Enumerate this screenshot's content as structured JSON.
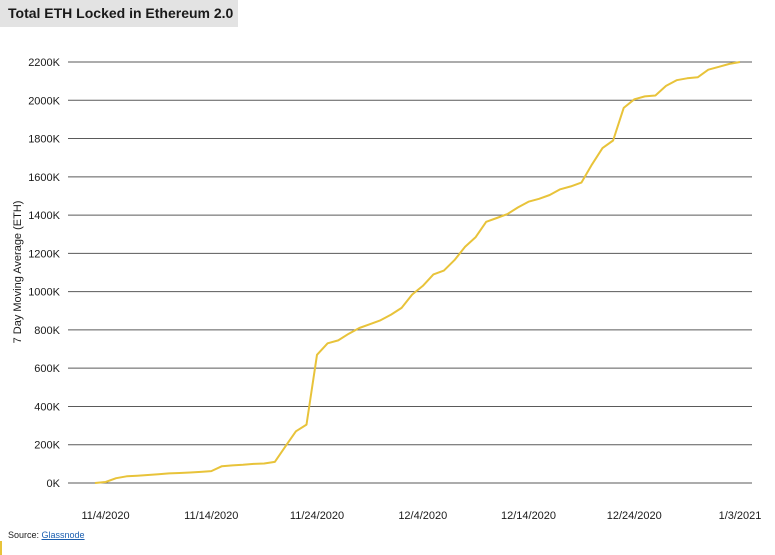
{
  "header": {
    "title": "Total ETH Locked in Ethereum 2.0"
  },
  "footer": {
    "source_prefix": "Source: ",
    "source_link": "Glassnode"
  },
  "colors": {
    "line": "#e8c33a",
    "grid": "#5a5a5a",
    "title_bg": "#e3e3e3"
  },
  "chart_data": {
    "type": "line",
    "title": "Total ETH Locked in Ethereum 2.0",
    "xlabel": "",
    "ylabel": "7 Day Moving Average (ETH)",
    "ylim": [
      0,
      2200000
    ],
    "xlim": [
      "2020-11-03",
      "2021-01-03"
    ],
    "y_ticks": [
      0,
      200000,
      400000,
      600000,
      800000,
      1000000,
      1200000,
      1400000,
      1600000,
      1800000,
      2000000,
      2200000
    ],
    "y_tick_labels": [
      "0K",
      "200K",
      "400K",
      "600K",
      "800K",
      "1000K",
      "1200K",
      "1400K",
      "1600K",
      "1800K",
      "2000K",
      "2200K"
    ],
    "x_ticks": [
      "2020-11-04",
      "2020-11-14",
      "2020-11-24",
      "2020-12-04",
      "2020-12-14",
      "2020-12-24",
      "2021-01-03"
    ],
    "x_tick_labels": [
      "11/4/2020",
      "11/14/2020",
      "11/24/2020",
      "12/4/2020",
      "12/14/2020",
      "12/24/2020",
      "1/3/2021"
    ],
    "grid": true,
    "series": [
      {
        "x": [
          "2020-11-03",
          "2020-11-04",
          "2020-11-05",
          "2020-11-06",
          "2020-11-07",
          "2020-11-08",
          "2020-11-09",
          "2020-11-10",
          "2020-11-11",
          "2020-11-12",
          "2020-11-13",
          "2020-11-14",
          "2020-11-15",
          "2020-11-16",
          "2020-11-17",
          "2020-11-18",
          "2020-11-19",
          "2020-11-20",
          "2020-11-21",
          "2020-11-22",
          "2020-11-23",
          "2020-11-24",
          "2020-11-25",
          "2020-11-26",
          "2020-11-27",
          "2020-11-28",
          "2020-11-29",
          "2020-11-30",
          "2020-12-01",
          "2020-12-02",
          "2020-12-03",
          "2020-12-04",
          "2020-12-05",
          "2020-12-06",
          "2020-12-07",
          "2020-12-08",
          "2020-12-09",
          "2020-12-10",
          "2020-12-11",
          "2020-12-12",
          "2020-12-13",
          "2020-12-14",
          "2020-12-15",
          "2020-12-16",
          "2020-12-17",
          "2020-12-18",
          "2020-12-19",
          "2020-12-20",
          "2020-12-21",
          "2020-12-22",
          "2020-12-23",
          "2020-12-24",
          "2020-12-25",
          "2020-12-26",
          "2020-12-27",
          "2020-12-28",
          "2020-12-29",
          "2020-12-30",
          "2020-12-31",
          "2021-01-01",
          "2021-01-02",
          "2021-01-03"
        ],
        "y": [
          0,
          5000,
          25000,
          35000,
          38000,
          42000,
          46000,
          50000,
          52000,
          55000,
          58000,
          62000,
          88000,
          92000,
          95000,
          100000,
          102000,
          110000,
          190000,
          270000,
          305000,
          670000,
          730000,
          745000,
          780000,
          810000,
          830000,
          850000,
          880000,
          915000,
          985000,
          1030000,
          1090000,
          1110000,
          1165000,
          1235000,
          1285000,
          1365000,
          1385000,
          1405000,
          1440000,
          1470000,
          1485000,
          1505000,
          1535000,
          1550000,
          1570000,
          1665000,
          1750000,
          1790000,
          1960000,
          2005000,
          2020000,
          2025000,
          2075000,
          2105000,
          2115000,
          2120000,
          2160000,
          2175000,
          2190000,
          2200000
        ]
      }
    ]
  }
}
